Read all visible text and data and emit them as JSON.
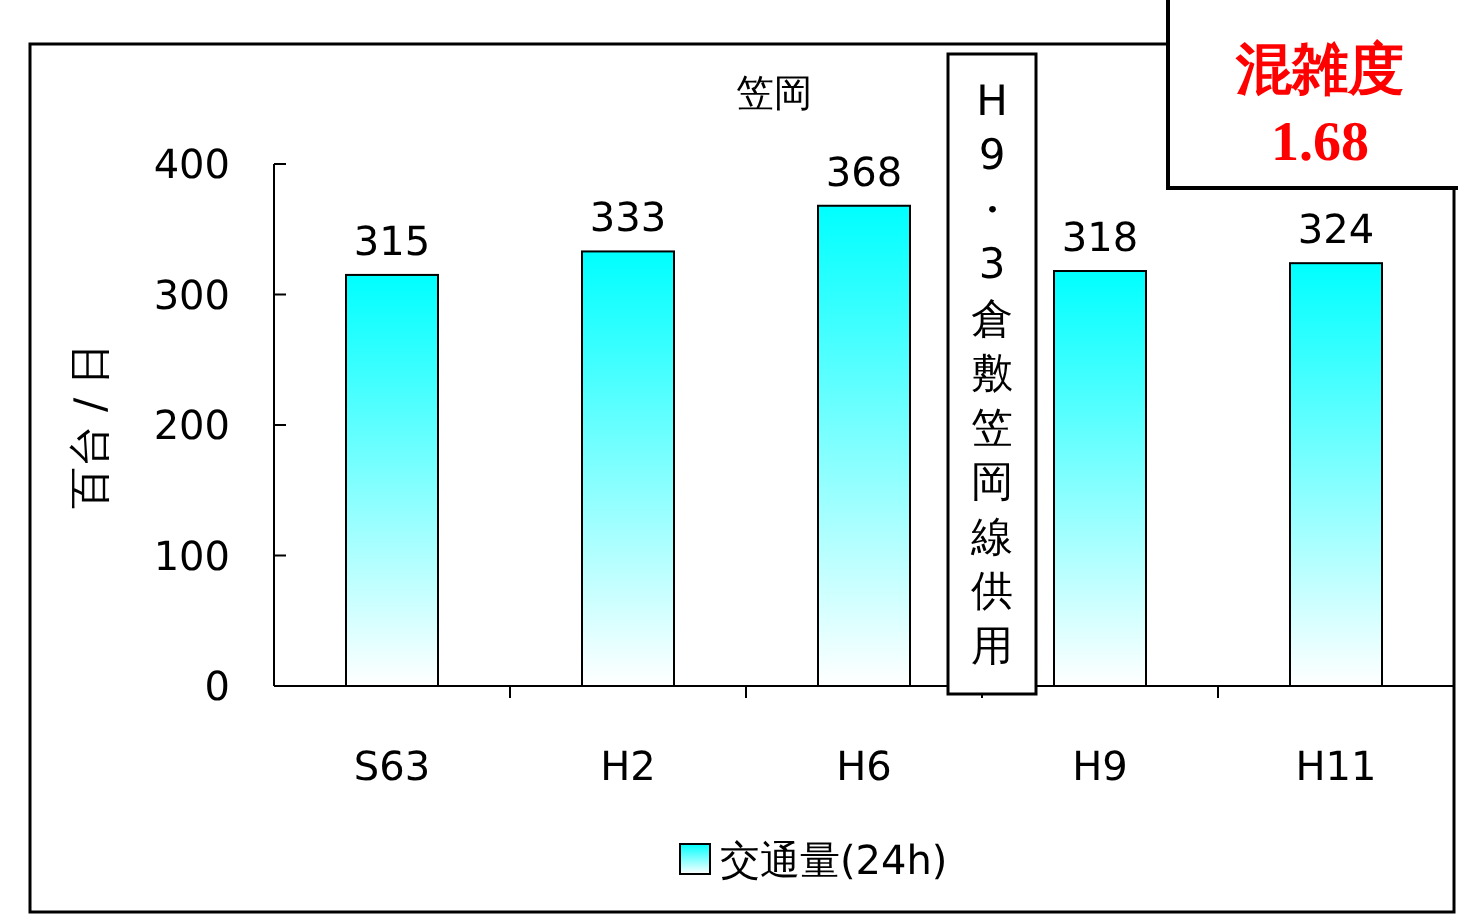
{
  "chart_data": {
    "type": "bar",
    "title": "笠岡",
    "ylabel": "百台 / 日",
    "categories": [
      "S63",
      "H2",
      "H6",
      "H9",
      "H11"
    ],
    "series": [
      {
        "name": "交通量(24h)",
        "color": "#00ffff",
        "values": [
          315,
          333,
          368,
          318,
          324
        ]
      }
    ],
    "ylim": [
      0,
      400
    ],
    "yticks": [
      0,
      100,
      200,
      300,
      400
    ],
    "data_labels": true,
    "legend": "bottom",
    "grid": false,
    "annotations": [
      "H9・3倉敷笠岡線供用",
      "混雑度\n1.68"
    ]
  }
}
